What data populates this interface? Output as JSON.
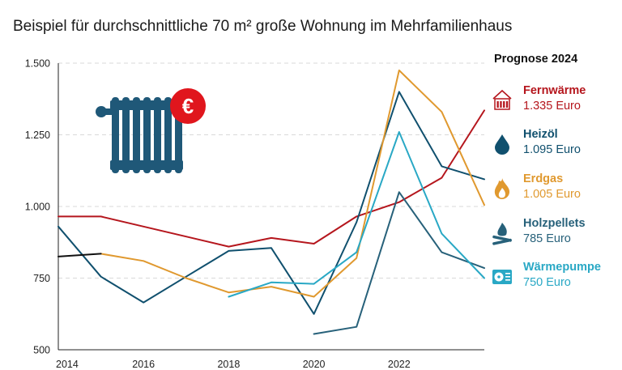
{
  "chart_data": {
    "type": "line",
    "title": "Beispiel für durchschnittliche 70 m² große Wohnung im Mehrfamilienhaus",
    "xlabel": "",
    "ylabel": "",
    "xlim": [
      2014,
      2024
    ],
    "ylim": [
      500,
      1500
    ],
    "x_ticks": [
      "2014",
      "2016",
      "2018",
      "2020",
      "2022"
    ],
    "x_tick_values": [
      2014,
      2016,
      2018,
      2020,
      2022
    ],
    "y_ticks": [
      "500",
      "750",
      "1.000",
      "1.250",
      "1.500"
    ],
    "y_tick_values": [
      500,
      750,
      1000,
      1250,
      1500
    ],
    "grid": "horizontal dashed",
    "legend_placement": "right",
    "legend_title": "Prognose 2024",
    "series": [
      {
        "name": "Fernwärme",
        "color": "#b5161d",
        "icon": "radiator-icon",
        "label": "1.335 Euro",
        "x": [
          2014,
          2015,
          2016,
          2017,
          2018,
          2019,
          2020,
          2021,
          2022,
          2023,
          2024
        ],
        "y": [
          965,
          965,
          930,
          895,
          860,
          890,
          870,
          965,
          1015,
          1100,
          1335
        ]
      },
      {
        "name": "Heizöl",
        "color": "#10506e",
        "icon": "drop-icon",
        "label": "1.095 Euro",
        "x": [
          2014,
          2015,
          2016,
          2017,
          2018,
          2019,
          2020,
          2021,
          2022,
          2023,
          2024
        ],
        "y": [
          930,
          755,
          665,
          755,
          845,
          855,
          625,
          945,
          1400,
          1140,
          1095
        ]
      },
      {
        "name": "Erdgas",
        "color": "#e0992f",
        "icon": "flame-icon",
        "label": "1.005 Euro",
        "x": [
          2015,
          2016,
          2017,
          2018,
          2019,
          2020,
          2021,
          2022,
          2023,
          2024
        ],
        "y": [
          835,
          810,
          750,
          700,
          720,
          685,
          820,
          1475,
          1330,
          1005
        ]
      },
      {
        "name": "Holzpellets",
        "color": "#27617a",
        "icon": "wood-fire-icon",
        "label": "785 Euro",
        "x": [
          2020,
          2021,
          2022,
          2023,
          2024
        ],
        "y": [
          555,
          580,
          1050,
          840,
          785
        ]
      },
      {
        "name": "Wärmepumpe",
        "color": "#29a8c5",
        "icon": "heat-pump-icon",
        "label": "750 Euro",
        "x": [
          2018,
          2019,
          2020,
          2021,
          2022,
          2023,
          2024
        ],
        "y": [
          685,
          735,
          730,
          840,
          1260,
          905,
          750
        ]
      },
      {
        "name": "",
        "color": "#111111",
        "x": [
          2014,
          2015
        ],
        "y": [
          825,
          835
        ]
      }
    ]
  },
  "decoration": {
    "radiator_icon": "radiator-icon",
    "euro_badge_icon": "euro-badge-icon",
    "euro_symbol": "€"
  }
}
